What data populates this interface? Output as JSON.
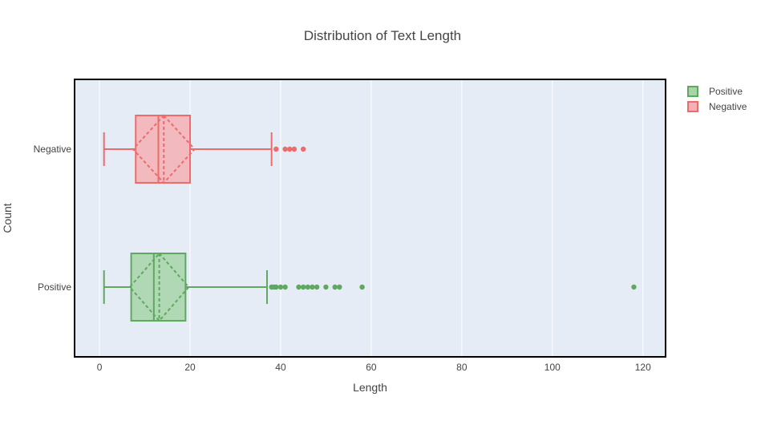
{
  "chart_data": {
    "type": "box",
    "title": "Distribution of Text Length",
    "xlabel": "Length",
    "ylabel": "Count",
    "xlim": [
      -5.5,
      125
    ],
    "xticks": [
      0,
      20,
      40,
      60,
      80,
      100,
      120
    ],
    "categories": [
      "Positive",
      "Negative"
    ],
    "grid": true,
    "legend": "right",
    "colors": {
      "plot_bg": "#e5ecf6",
      "grid": "#ffffff",
      "frame": "#000000",
      "text": "#444444"
    },
    "series": [
      {
        "name": "Positive",
        "category": "Positive",
        "color": "#5fa85f",
        "fill": "#a8d5a8",
        "whisker_low": 1,
        "q1": 7,
        "median": 12,
        "q3": 19,
        "whisker_high": 37,
        "mean": 13.2,
        "sd": 6.5,
        "outliers": [
          38,
          38.5,
          39,
          40,
          41,
          44,
          45,
          46,
          47,
          48,
          50,
          52,
          53,
          58,
          118
        ]
      },
      {
        "name": "Negative",
        "category": "Negative",
        "color": "#ee6b6b",
        "fill": "#f4b0b4",
        "whisker_low": 1,
        "q1": 8,
        "median": 13,
        "q3": 20,
        "whisker_high": 38,
        "mean": 14.2,
        "sd": 6.8,
        "outliers": [
          39,
          41,
          42,
          43,
          45
        ]
      }
    ]
  }
}
